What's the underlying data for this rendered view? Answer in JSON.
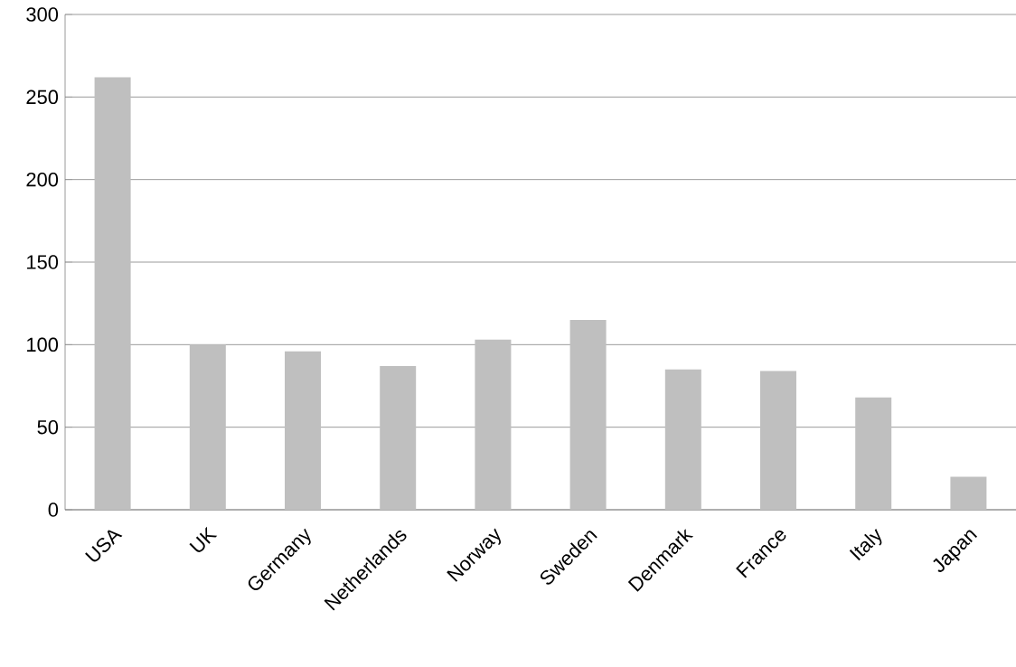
{
  "chart_data": {
    "type": "bar",
    "categories": [
      "USA",
      "UK",
      "Germany",
      "Netherlands",
      "Norway",
      "Sweden",
      "Denmark",
      "France",
      "Italy",
      "Japan"
    ],
    "values": [
      262,
      100,
      96,
      87,
      103,
      115,
      85,
      84,
      68,
      20
    ],
    "color": "#bfbfbf",
    "ylim": [
      0,
      300
    ],
    "yticks": [
      0,
      50,
      100,
      150,
      200,
      250,
      300
    ],
    "grid": "y"
  }
}
